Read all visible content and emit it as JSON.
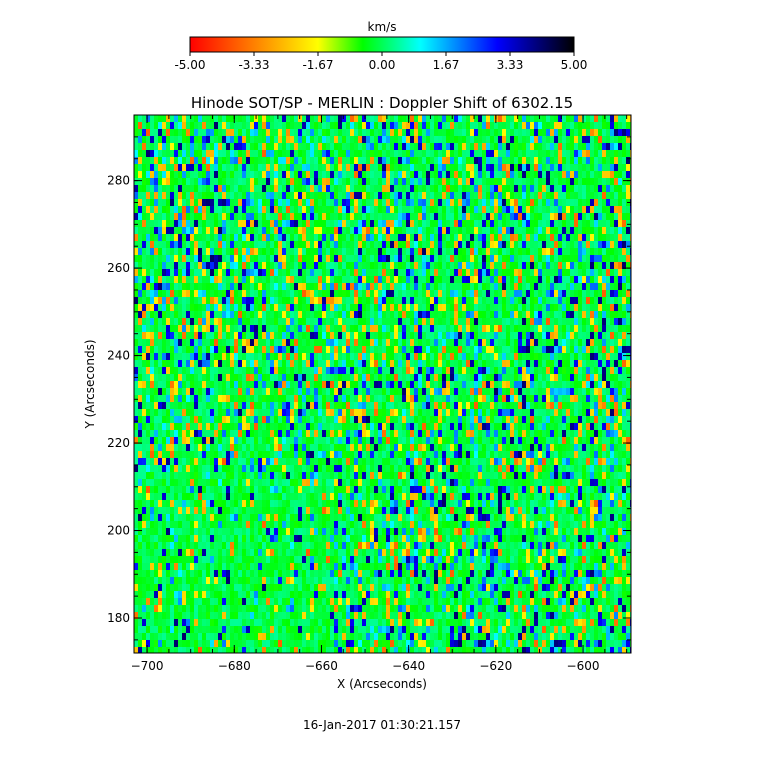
{
  "chart_data": {
    "type": "heatmap",
    "title": "Hinode SOT/SP - MERLIN : Doppler Shift of 6302.15",
    "xlabel": "X (Arcseconds)",
    "ylabel": "Y (Arcseconds)",
    "xlim": [
      -703,
      -589
    ],
    "ylim": [
      172,
      295
    ],
    "xticks": [
      -700,
      -680,
      -660,
      -640,
      -620,
      -600
    ],
    "yticks": [
      180,
      200,
      220,
      240,
      260,
      280
    ],
    "colorbar": {
      "label": "km/s",
      "range": [
        -5.0,
        5.0
      ],
      "ticks": [
        "-5.00",
        "-3.33",
        "-1.67",
        "0.00",
        "1.67",
        "3.33",
        "5.00"
      ],
      "colors": [
        "#ff0000",
        "#ff8000",
        "#ffff00",
        "#00ff00",
        "#00ffff",
        "#0000ff",
        "#000000"
      ]
    },
    "dominant_value": 0.0,
    "value_range": [
      -5.0,
      5.0
    ],
    "description_note": "",
    "timestamp": "16-Jan-2017 01:30:21.157"
  }
}
